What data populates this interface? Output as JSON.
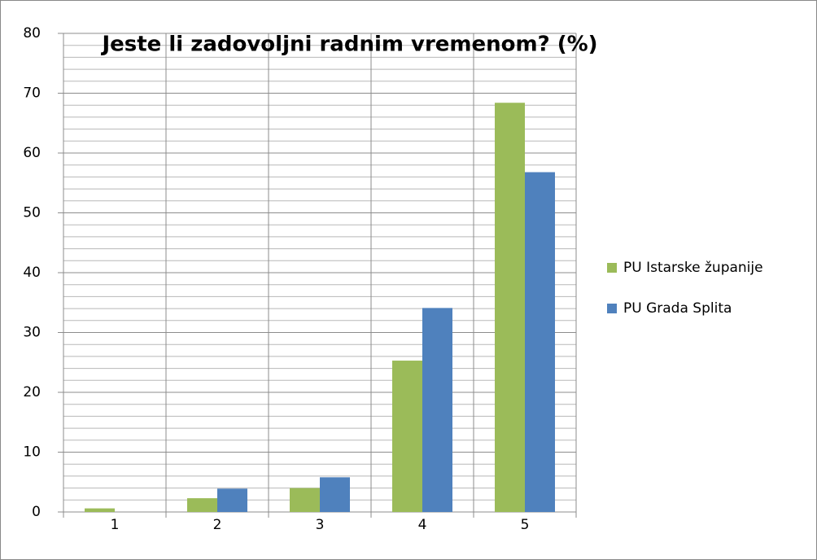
{
  "chart_data": {
    "type": "bar",
    "title": "Jeste li zadovoljni radnim vremenom? (%)",
    "categories": [
      "1",
      "2",
      "3",
      "4",
      "5"
    ],
    "series": [
      {
        "name": "PU Istarske županije",
        "color": "#9bbb59",
        "values": [
          0.6,
          2.3,
          4.0,
          25.3,
          68.4
        ]
      },
      {
        "name": "PU Grada Splita",
        "color": "#4f81bd",
        "values": [
          0,
          3.9,
          5.8,
          34.1,
          56.8
        ]
      }
    ],
    "ylim": [
      0,
      80
    ],
    "yticks": [
      0,
      10,
      20,
      30,
      40,
      50,
      60,
      70,
      80
    ],
    "grid": true,
    "minor_grid": true,
    "legend": "right"
  }
}
